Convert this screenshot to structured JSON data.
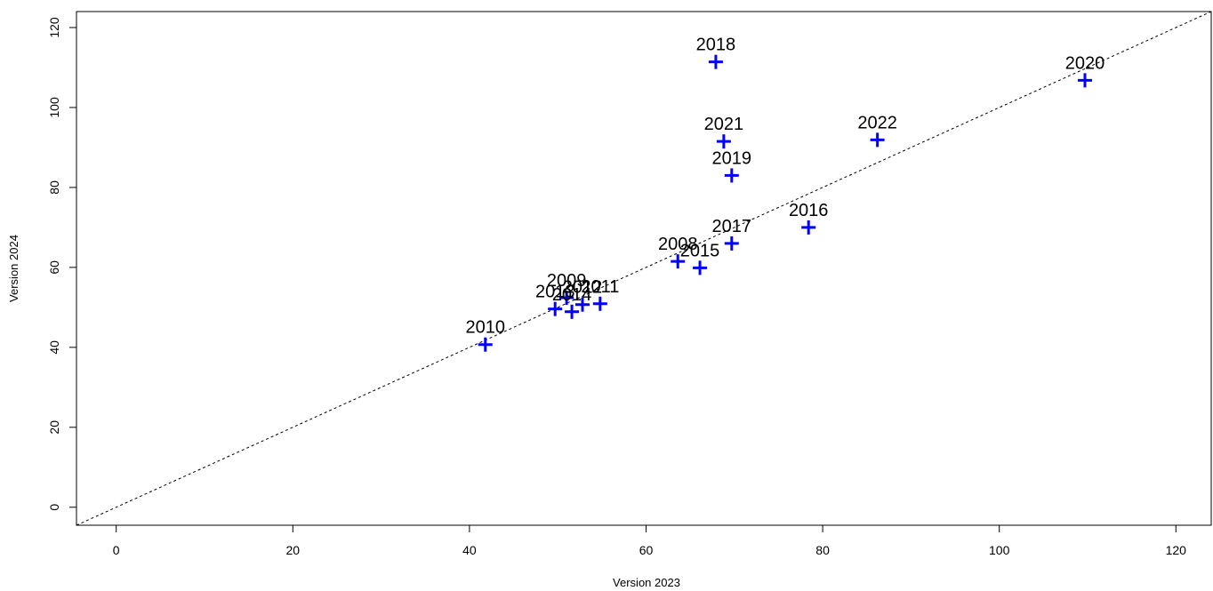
{
  "chart_data": {
    "type": "scatter",
    "xlabel": "Version 2023",
    "ylabel": "Version 2024",
    "xlim": [
      -4.5,
      124
    ],
    "ylim": [
      -4.5,
      124
    ],
    "x_ticks": [
      0,
      20,
      40,
      60,
      80,
      100,
      120
    ],
    "y_ticks": [
      0,
      20,
      40,
      60,
      80,
      100,
      120
    ],
    "grid": false,
    "legend": "none",
    "reference_line": {
      "type": "identity",
      "style": "dashed",
      "color": "#000000"
    },
    "marker": {
      "shape": "plus",
      "color": "#0000ff"
    },
    "points": [
      {
        "label": "2008",
        "x": 63.6,
        "y": 61.5
      },
      {
        "label": "2009",
        "x": 51.0,
        "y": 52.4
      },
      {
        "label": "2010",
        "x": 41.8,
        "y": 40.7
      },
      {
        "label": "2011",
        "x": 54.8,
        "y": 50.9
      },
      {
        "label": "2012",
        "x": 52.8,
        "y": 50.7
      },
      {
        "label": "2013",
        "x": 49.7,
        "y": 49.6
      },
      {
        "label": "2014",
        "x": 51.6,
        "y": 48.9
      },
      {
        "label": "2015",
        "x": 66.1,
        "y": 59.9
      },
      {
        "label": "2016",
        "x": 78.4,
        "y": 70.0
      },
      {
        "label": "2017",
        "x": 69.7,
        "y": 66.0
      },
      {
        "label": "2018",
        "x": 67.9,
        "y": 111.4
      },
      {
        "label": "2019",
        "x": 69.7,
        "y": 83.0
      },
      {
        "label": "2020",
        "x": 109.7,
        "y": 106.8
      },
      {
        "label": "2021",
        "x": 68.8,
        "y": 91.5
      },
      {
        "label": "2022",
        "x": 86.2,
        "y": 91.9
      }
    ]
  }
}
